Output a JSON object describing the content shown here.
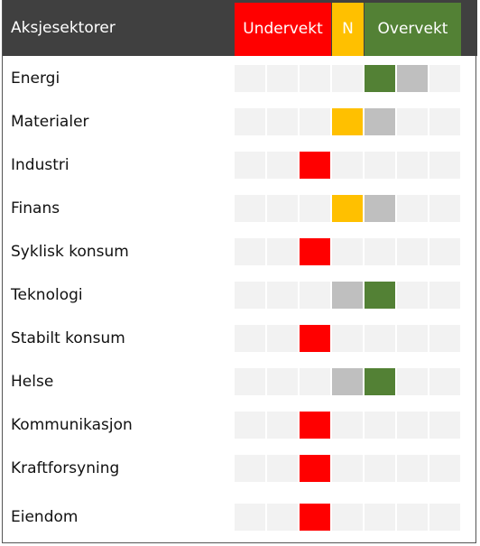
{
  "header": {
    "title": "Aksjesektorer",
    "groups": [
      {
        "label": "Undervekt",
        "color": "#ff0000",
        "columns": 3
      },
      {
        "label": "N",
        "color": "#ffc000",
        "columns": 1
      },
      {
        "label": "Overvekt",
        "color": "#538135",
        "columns": 3
      }
    ]
  },
  "previous_color": "#bfbfbf",
  "rows": [
    {
      "sector": "Energi",
      "position": 4,
      "previous": 5
    },
    {
      "sector": "Materialer",
      "position": 3,
      "previous": 4
    },
    {
      "sector": "Industri",
      "position": 2
    },
    {
      "sector": "Finans",
      "position": 3,
      "previous": 4
    },
    {
      "sector": "Syklisk konsum",
      "position": 2
    },
    {
      "sector": "Teknologi",
      "position": 4,
      "previous": 3
    },
    {
      "sector": "Stabilt konsum",
      "position": 2
    },
    {
      "sector": "Helse",
      "position": 4,
      "previous": 3
    },
    {
      "sector": "Kommunikasjon",
      "position": 2
    },
    {
      "sector": "Kraftforsyning",
      "position": 2
    },
    {
      "sector": "Eiendom",
      "position": 2
    }
  ]
}
